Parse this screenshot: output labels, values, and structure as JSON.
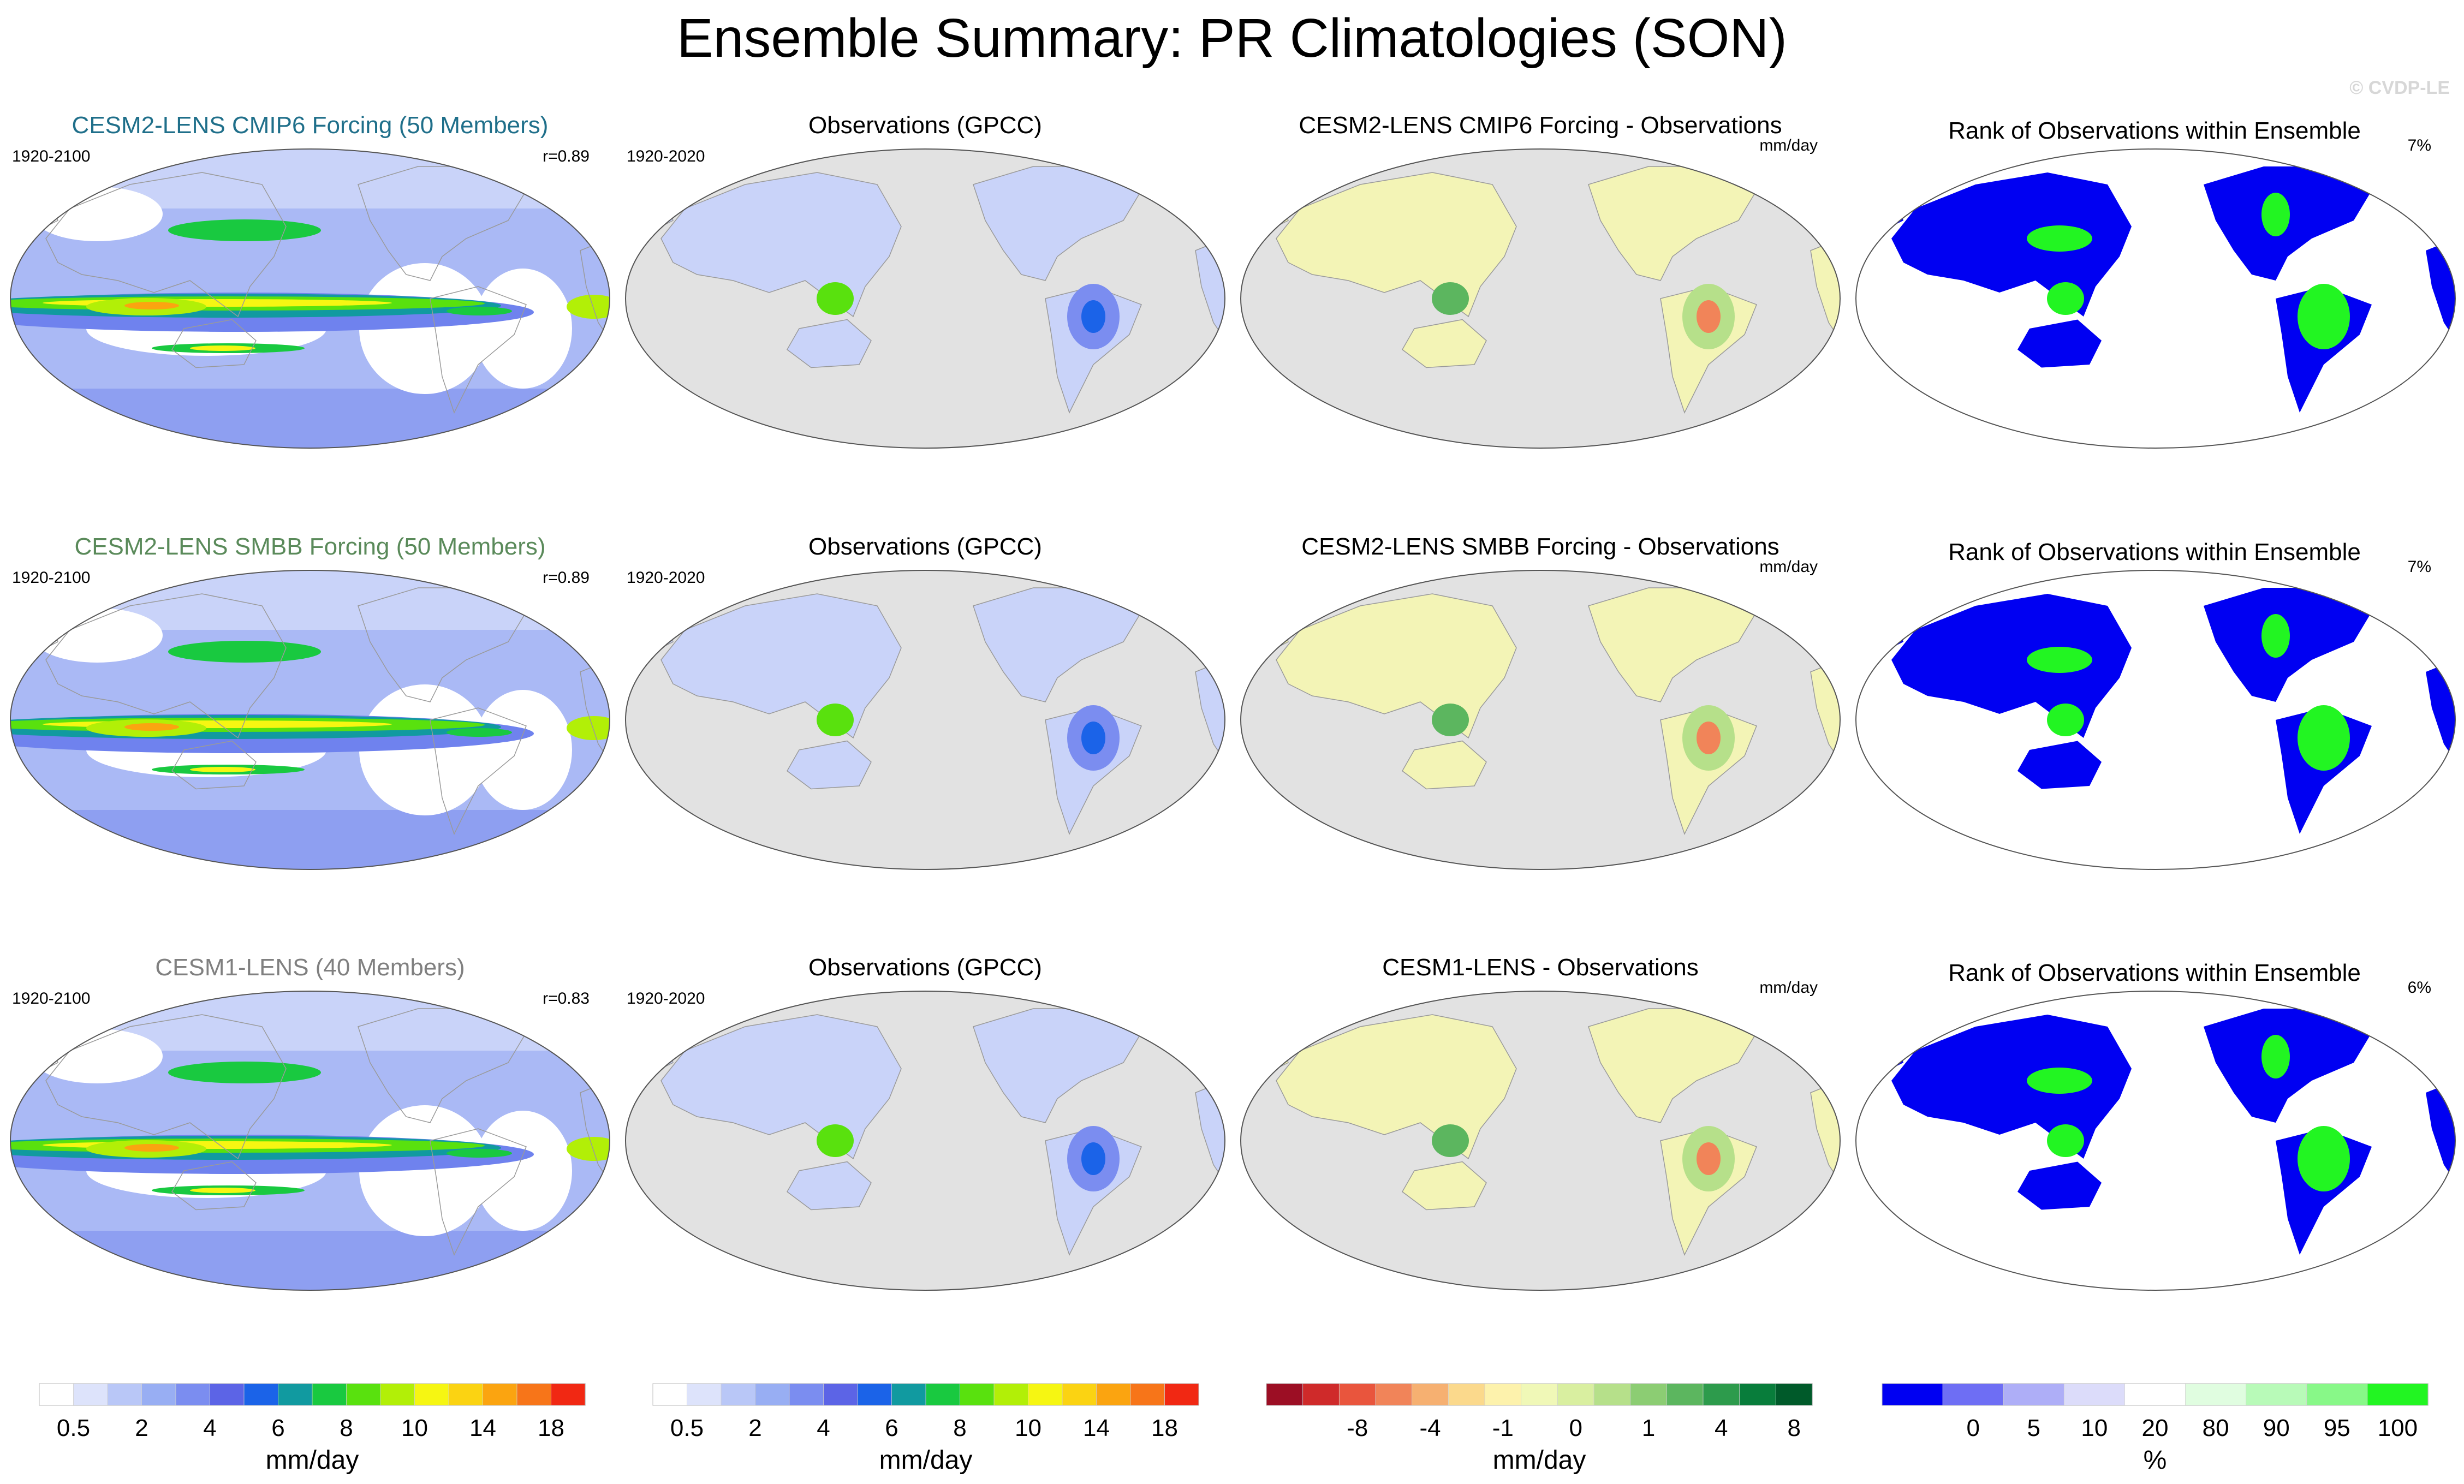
{
  "title": "Ensemble Summary: PR Climatologies (SON)",
  "watermark": "© CVDP-LE",
  "colors": {
    "title_cmip6": "#1f6f8a",
    "title_smbb": "#5a8a5a",
    "title_cesm1": "#808080",
    "land_gray": "#e2e2e2",
    "ocean_white": "#ffffff"
  },
  "rows": [
    {
      "model_title": "CESM2-LENS CMIP6 Forcing (50 Members)",
      "title_color": "#1f6f8a",
      "model_years": "1920-2100",
      "correlation": "r=0.89",
      "obs_title": "Observations (GPCC)",
      "obs_years": "1920-2020",
      "diff_title": "CESM2-LENS CMIP6 Forcing - Observations",
      "diff_units": "mm/day",
      "rank_title": "Rank of Observations within Ensemble",
      "rank_pct": "7%"
    },
    {
      "model_title": "CESM2-LENS SMBB Forcing (50 Members)",
      "title_color": "#5a8a5a",
      "model_years": "1920-2100",
      "correlation": "r=0.89",
      "obs_title": "Observations (GPCC)",
      "obs_years": "1920-2020",
      "diff_title": "CESM2-LENS SMBB Forcing - Observations",
      "diff_units": "mm/day",
      "rank_title": "Rank of Observations within Ensemble",
      "rank_pct": "7%"
    },
    {
      "model_title": "CESM1-LENS (40 Members)",
      "title_color": "#808080",
      "model_years": "1920-2100",
      "correlation": "r=0.83",
      "obs_title": "Observations (GPCC)",
      "obs_years": "1920-2020",
      "diff_title": "CESM1-LENS - Observations",
      "diff_units": "mm/day",
      "rank_title": "Rank of Observations within Ensemble",
      "rank_pct": "6%"
    }
  ],
  "chart_data": [
    {
      "type": "heatmap",
      "panel": "model climatology",
      "variable": "PR",
      "season": "SON",
      "units": "mm/day",
      "colorbar": {
        "colors": [
          "#ffffff",
          "#dde3fb",
          "#b9c7f7",
          "#98aef3",
          "#7b8df0",
          "#5c64e6",
          "#1b63e8",
          "#119aa0",
          "#19c940",
          "#59e10e",
          "#b2ef07",
          "#f6f612",
          "#fbd312",
          "#fba410",
          "#f77519",
          "#f12813"
        ],
        "ticks": [
          "0.5",
          "2",
          "4",
          "6",
          "8",
          "10",
          "14",
          "18"
        ],
        "label": "mm/day"
      }
    },
    {
      "type": "heatmap",
      "panel": "observations",
      "variable": "PR",
      "season": "SON",
      "units": "mm/day",
      "colorbar": {
        "colors": [
          "#ffffff",
          "#dde3fb",
          "#b9c7f7",
          "#98aef3",
          "#7b8df0",
          "#5c64e6",
          "#1b63e8",
          "#119aa0",
          "#19c940",
          "#59e10e",
          "#b2ef07",
          "#f6f612",
          "#fbd312",
          "#fba410",
          "#f77519",
          "#f12813"
        ],
        "ticks": [
          "0.5",
          "2",
          "4",
          "6",
          "8",
          "10",
          "14",
          "18"
        ],
        "label": "mm/day"
      }
    },
    {
      "type": "heatmap",
      "panel": "model minus observations",
      "units": "mm/day",
      "colorbar": {
        "colors": [
          "#9c0e24",
          "#cf2a2a",
          "#e9553d",
          "#f18459",
          "#f6b071",
          "#fbd98c",
          "#fdf2ac",
          "#f0f8b7",
          "#d9efa0",
          "#b6e08a",
          "#8ccd73",
          "#5cb65f",
          "#2d9b4c",
          "#087d3b",
          "#005a2a"
        ],
        "ticks": [
          "-8",
          "-4",
          "-1",
          "0",
          "1",
          "4",
          "8"
        ],
        "label": "mm/day"
      }
    },
    {
      "type": "heatmap",
      "panel": "rank of observations within ensemble",
      "units": "%",
      "colorbar": {
        "colors": [
          "#0000f2",
          "#6e6ef4",
          "#aeaef7",
          "#dcdcfa",
          "#ffffff",
          "#e0fde0",
          "#b8fab8",
          "#88f888",
          "#22f522"
        ],
        "ticks": [
          "0",
          "5",
          "10",
          "20",
          "80",
          "90",
          "95",
          "100"
        ],
        "label": "%"
      }
    }
  ]
}
